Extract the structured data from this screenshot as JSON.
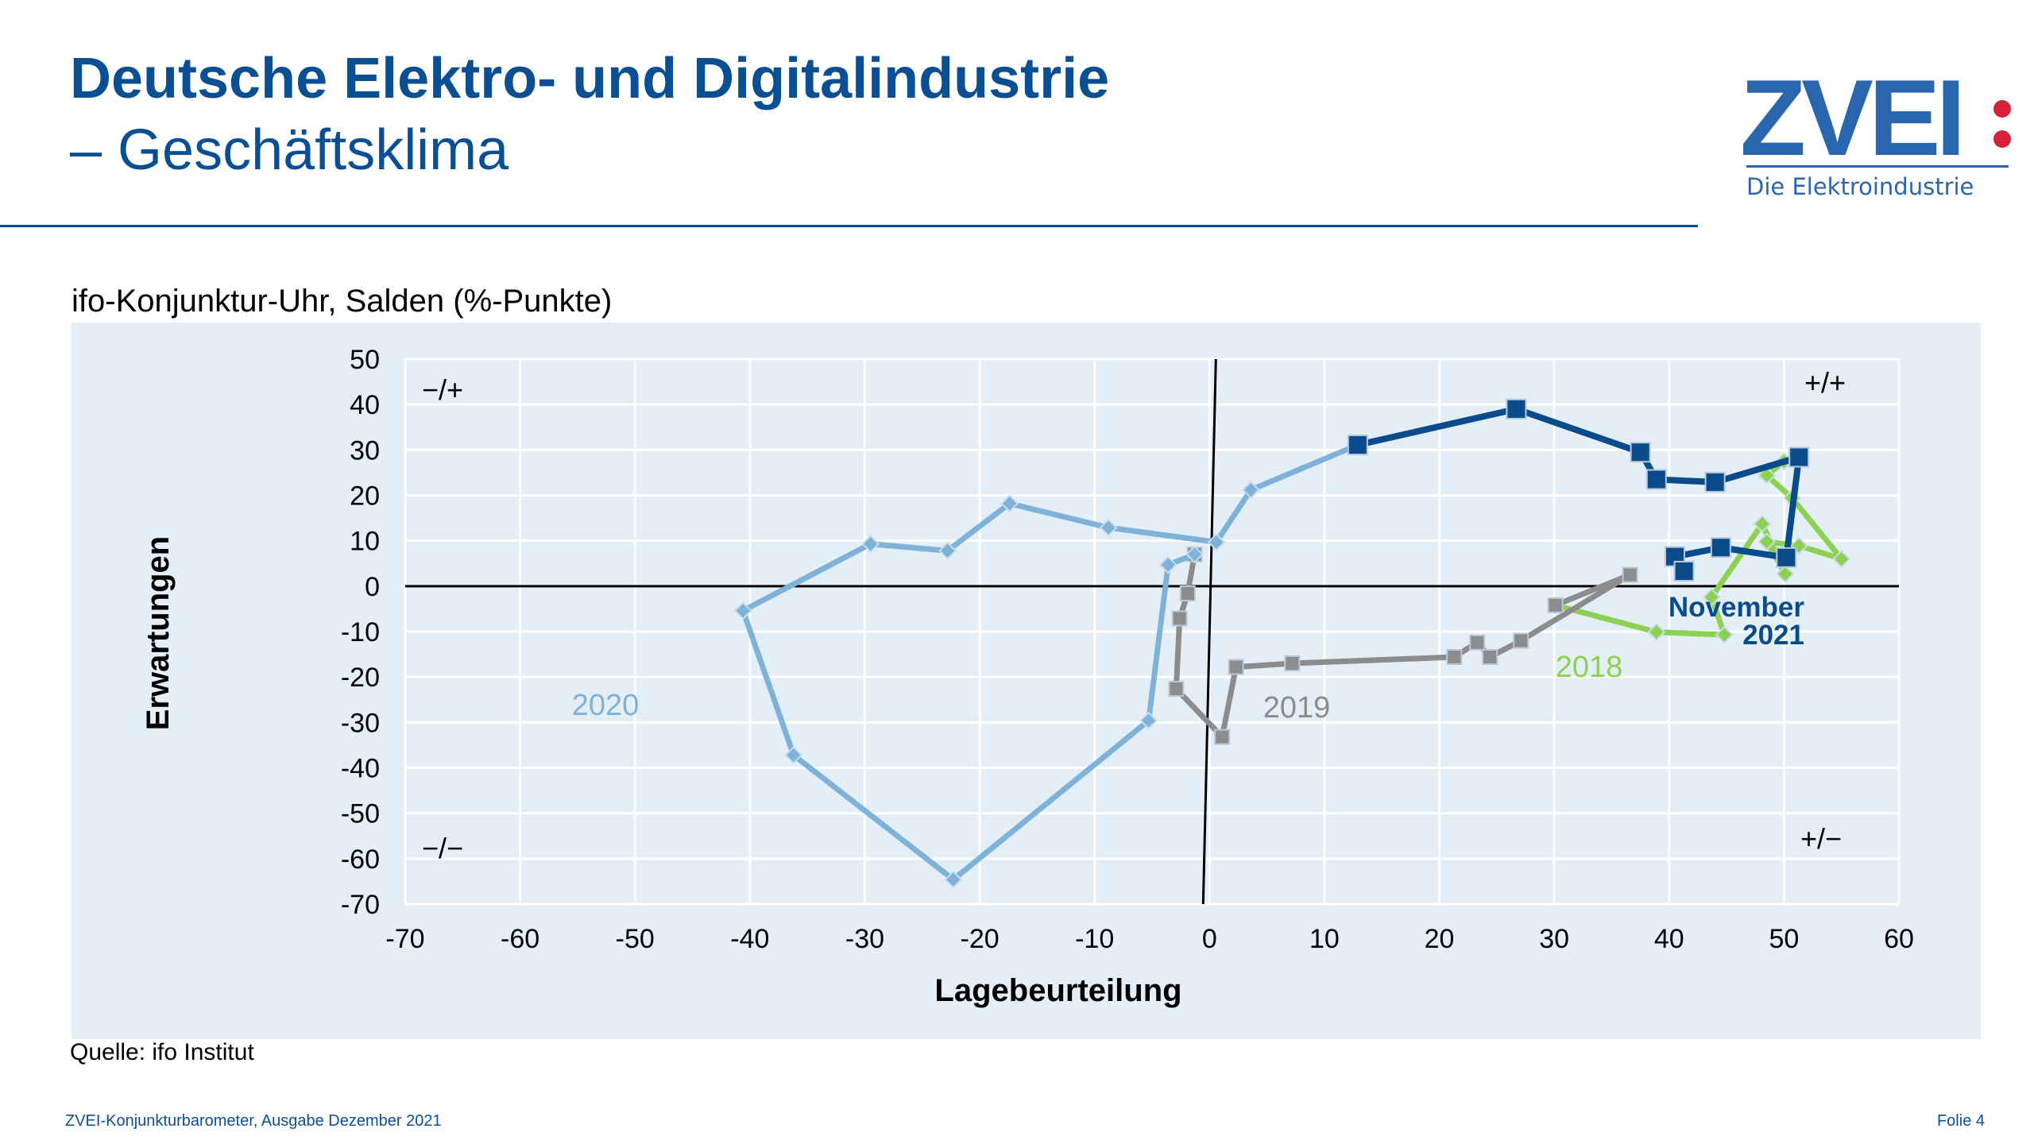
{
  "header": {
    "title_line1": "Deutsche Elektro- und Digitalindustrie",
    "title_line2": "– Geschäftsklima"
  },
  "logo": {
    "text": "ZVEI:",
    "tagline": "Die Elektroindustrie",
    "brand_color": "#2a66ad",
    "dot_color": "#d7223c"
  },
  "chart_label": "ifo-Konjunktur-Uhr, Salden (%-Punkte)",
  "source": "Quelle: ifo Institut",
  "footer": {
    "left": "ZVEI-Konjunkturbarometer, Ausgabe Dezember 2021",
    "right": "Folie 4"
  },
  "chart_data": {
    "type": "scatter",
    "xlabel": "Lagebeurteilung",
    "ylabel": "Erwartungen",
    "xlim": [
      -70,
      60
    ],
    "ylim": [
      -70,
      50
    ],
    "xticks": [
      -70,
      -60,
      -50,
      -40,
      -30,
      -20,
      -10,
      0,
      10,
      20,
      30,
      40,
      50,
      60
    ],
    "yticks": [
      50,
      40,
      30,
      20,
      10,
      0,
      -10,
      -20,
      -30,
      -40,
      -50,
      -60,
      -70
    ],
    "grid": true,
    "background": "#e3eef6",
    "quadrant_labels": {
      "top_left": "−/+",
      "top_right": "+/+",
      "bottom_left": "−/−",
      "bottom_right": "+/−"
    },
    "series": [
      {
        "name": "2018",
        "color": "#8dd150",
        "marker": "diamond",
        "points": [
          [
            50.0,
            27.5
          ],
          [
            48.5,
            24.4
          ],
          [
            50.7,
            19.4
          ],
          [
            55.0,
            6.0
          ],
          [
            51.3,
            8.9
          ],
          [
            48.5,
            9.8
          ],
          [
            50.1,
            2.7
          ],
          [
            48.1,
            13.7
          ],
          [
            43.7,
            -2.4
          ],
          [
            44.8,
            -10.7
          ],
          [
            38.9,
            -10.1
          ],
          [
            30.1,
            -4.2
          ]
        ]
      },
      {
        "name": "2019",
        "color": "#8c8c8c",
        "marker": "square",
        "points": [
          [
            30.1,
            -4.2
          ],
          [
            36.6,
            2.5
          ],
          [
            27.1,
            -12.0
          ],
          [
            24.4,
            -15.6
          ],
          [
            23.3,
            -12.4
          ],
          [
            21.3,
            -15.6
          ],
          [
            7.2,
            -17.0
          ],
          [
            2.3,
            -17.8
          ],
          [
            1.1,
            -33.2
          ],
          [
            -2.9,
            -22.6
          ],
          [
            -2.6,
            -7.1
          ],
          [
            -1.9,
            -1.6
          ],
          [
            -1.3,
            7.0
          ]
        ]
      },
      {
        "name": "2020",
        "color": "#7fb2d9",
        "marker": "diamond",
        "points": [
          [
            -1.3,
            7.0
          ],
          [
            -3.6,
            4.7
          ],
          [
            -5.3,
            -29.6
          ],
          [
            -22.3,
            -64.6
          ],
          [
            -36.2,
            -37.2
          ],
          [
            -40.6,
            -5.4
          ],
          [
            -29.5,
            9.3
          ],
          [
            -22.8,
            7.8
          ],
          [
            -17.4,
            18.2
          ],
          [
            -8.8,
            12.9
          ],
          [
            0.6,
            9.7
          ],
          [
            3.6,
            21.2
          ],
          [
            12.9,
            31.1
          ]
        ]
      },
      {
        "name": "November 2021",
        "color": "#0a4b8c",
        "marker": "square",
        "points": [
          [
            12.9,
            31.1
          ],
          [
            26.7,
            39.0
          ],
          [
            37.5,
            29.5
          ],
          [
            38.9,
            23.5
          ],
          [
            44.0,
            22.9
          ],
          [
            51.3,
            28.4
          ],
          [
            50.2,
            6.3
          ],
          [
            44.5,
            8.5
          ],
          [
            40.5,
            6.5
          ],
          [
            41.3,
            3.3
          ]
        ]
      }
    ],
    "series_labels": {
      "2018": "2018",
      "2019": "2019",
      "2020": "2020",
      "2021_line1": "November",
      "2021_line2": "2021"
    }
  }
}
